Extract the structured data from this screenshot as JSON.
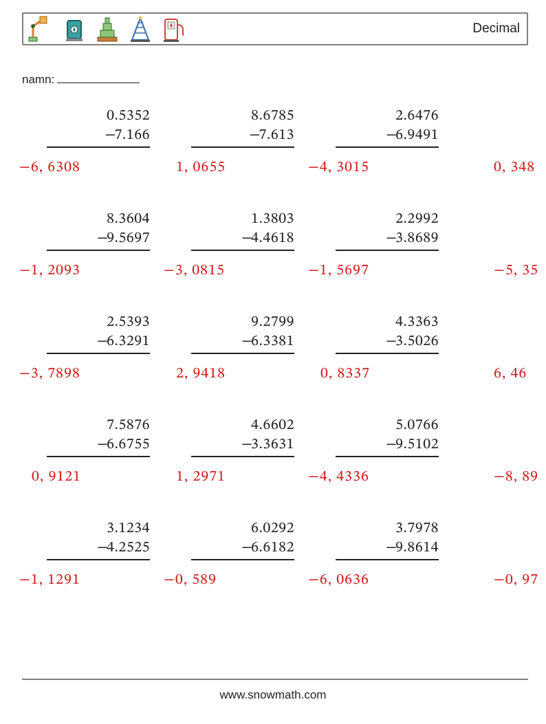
{
  "header_title": "Decimal",
  "name_label": "namn:",
  "footer": "www.snowmath.com",
  "answer_color": "#d11a1a",
  "problems": [
    [
      {
        "a": "0.5352",
        "b": "7.166",
        "ans": "−6, 6308"
      },
      {
        "a": "8.6785",
        "b": "7.613",
        "ans": "1, 0655"
      },
      {
        "a": "2.6476",
        "b": "6.9491",
        "ans": "−4, 3015"
      },
      {
        "a": "",
        "b": "",
        "ans": "0, 348"
      }
    ],
    [
      {
        "a": "8.3604",
        "b": "9.5697",
        "ans": "−1, 2093"
      },
      {
        "a": "1.3803",
        "b": "4.4618",
        "ans": "−3, 0815"
      },
      {
        "a": "2.2992",
        "b": "3.8689",
        "ans": "−1, 5697"
      },
      {
        "a": "",
        "b": "",
        "ans": "−5, 35"
      }
    ],
    [
      {
        "a": "2.5393",
        "b": "6.3291",
        "ans": "−3, 7898"
      },
      {
        "a": "9.2799",
        "b": "6.3381",
        "ans": "2, 9418"
      },
      {
        "a": "4.3363",
        "b": "3.5026",
        "ans": "0, 8337"
      },
      {
        "a": "",
        "b": "",
        "ans": "6, 46"
      }
    ],
    [
      {
        "a": "7.5876",
        "b": "6.6755",
        "ans": "0, 9121"
      },
      {
        "a": "4.6602",
        "b": "3.3631",
        "ans": "1, 2971"
      },
      {
        "a": "5.0766",
        "b": "9.5102",
        "ans": "−4, 4336"
      },
      {
        "a": "",
        "b": "",
        "ans": "−8, 89"
      }
    ],
    [
      {
        "a": "3.1234",
        "b": "4.2525",
        "ans": "−1, 1291"
      },
      {
        "a": "6.0292",
        "b": "6.6182",
        "ans": "−0, 589"
      },
      {
        "a": "3.7978",
        "b": "9.8614",
        "ans": "−6, 0636"
      },
      {
        "a": "",
        "b": "",
        "ans": "−0, 97"
      }
    ]
  ]
}
